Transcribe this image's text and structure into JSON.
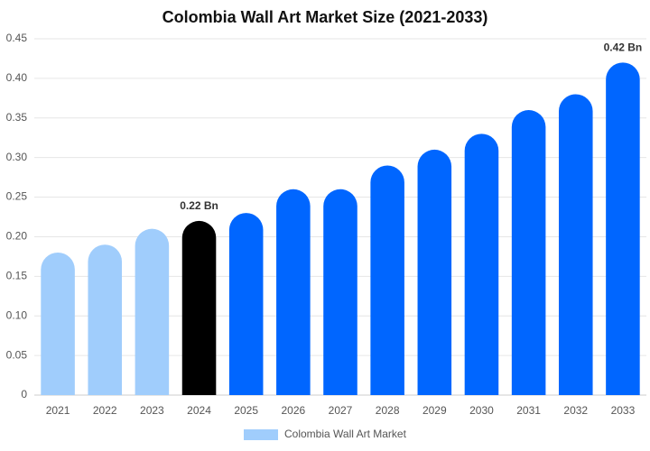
{
  "chart_data": {
    "type": "bar",
    "title": "Colombia Wall Art Market Size (2021-2033)",
    "categories": [
      "2021",
      "2022",
      "2023",
      "2024",
      "2025",
      "2026",
      "2027",
      "2028",
      "2029",
      "2030",
      "2031",
      "2032",
      "2033"
    ],
    "series": [
      {
        "name": "Colombia Wall Art Market",
        "color": "#a0cdfc",
        "values": [
          0.18,
          0.19,
          0.21,
          0.22,
          0.23,
          0.26,
          0.26,
          0.29,
          0.31,
          0.33,
          0.36,
          0.38,
          0.42
        ],
        "value_labels": [
          null,
          null,
          null,
          "0.22 Bn",
          null,
          null,
          null,
          null,
          null,
          null,
          null,
          null,
          "0.42 Bn"
        ],
        "colors": [
          "#a0cdfc",
          "#a0cdfc",
          "#a0cdfc",
          "#000000",
          "#0066ff",
          "#0066ff",
          "#0066ff",
          "#0066ff",
          "#0066ff",
          "#0066ff",
          "#0066ff",
          "#0066ff",
          "#0066ff"
        ]
      }
    ],
    "ylim": [
      0,
      0.45
    ],
    "yticks": [
      0,
      0.05,
      {
        "value": 0.1,
        "label": "0.10"
      },
      0.15,
      {
        "value": 0.2,
        "label": "0.20"
      },
      0.25,
      {
        "value": 0.3,
        "label": "0.30"
      },
      0.35,
      {
        "value": 0.4,
        "label": "0.40"
      },
      0.45
    ],
    "grid": true
  }
}
